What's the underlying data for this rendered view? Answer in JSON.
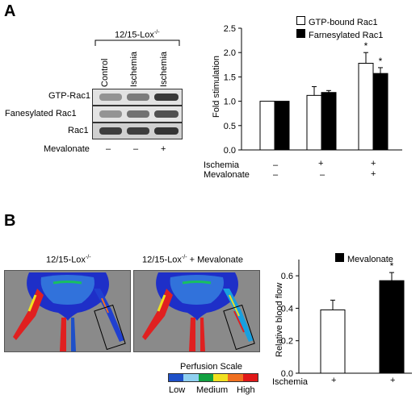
{
  "panel_a": {
    "letter": "A",
    "group_label": "12/15-Lox",
    "group_sup": "-/-",
    "lanes": [
      "Control",
      "Ischemia",
      "Ischemia"
    ],
    "blot_rows": [
      "GTP-Rac1",
      "Fanesylated Rac1",
      "Rac1"
    ],
    "treatment_label": "Mevalonate",
    "treatment_marks": [
      "–",
      "–",
      "+"
    ]
  },
  "panel_b": {
    "letter": "B",
    "image_left_title": "12/15-Lox",
    "image_left_sup": "-/-",
    "image_right_title_a": "12/15-Lox",
    "image_right_sup": "-/-",
    "image_right_title_b": " + Mevalonate",
    "scale_title": "Perfusion Scale",
    "scale_low": "Low",
    "scale_medium": "Medium",
    "scale_high": "High",
    "scale_colors": [
      "#1e50c8",
      "#8fd0f0",
      "#12a040",
      "#f0e020",
      "#f07020",
      "#e01818"
    ]
  },
  "chart_data": [
    {
      "type": "bar",
      "ylabel": "Fold stimulation",
      "ylim": [
        0,
        2.5
      ],
      "yticks": [
        "0.0",
        "0.5",
        "1.0",
        "1.5",
        "2.0",
        "2.5"
      ],
      "categories": [
        "1",
        "2",
        "3"
      ],
      "series": [
        {
          "name": "GTP-bound Rac1",
          "color": "#ffffff",
          "values": [
            1.0,
            1.12,
            1.78
          ],
          "errors": [
            0,
            0.18,
            0.22
          ],
          "significance": [
            "",
            "",
            "*"
          ]
        },
        {
          "name": "Farnesylated Rac1",
          "color": "#000000",
          "values": [
            1.0,
            1.18,
            1.57
          ],
          "errors": [
            0,
            0.04,
            0.12
          ],
          "significance": [
            "",
            "",
            "*"
          ]
        }
      ],
      "row_labels": [
        "Ischemia",
        "Mevalonate"
      ],
      "row_marks": [
        [
          "–",
          "+",
          "+"
        ],
        [
          "–",
          "–",
          "+"
        ]
      ],
      "legend": "top-right"
    },
    {
      "type": "bar",
      "ylabel": "Relative blood flow",
      "ylim": [
        0,
        0.7
      ],
      "yticks": [
        "0.0",
        "0.2",
        "0.4",
        "0.6"
      ],
      "categories": [
        "1",
        "2"
      ],
      "series": [
        {
          "name": "Mevalonate",
          "values": [
            0.39,
            0.57
          ],
          "errors": [
            0.06,
            0.05
          ],
          "colors": [
            "#ffffff",
            "#000000"
          ],
          "significance": [
            "",
            "*"
          ]
        }
      ],
      "row_labels": [
        "Ischemia"
      ],
      "row_marks": [
        [
          "+",
          "+"
        ]
      ],
      "legend": "top"
    }
  ]
}
